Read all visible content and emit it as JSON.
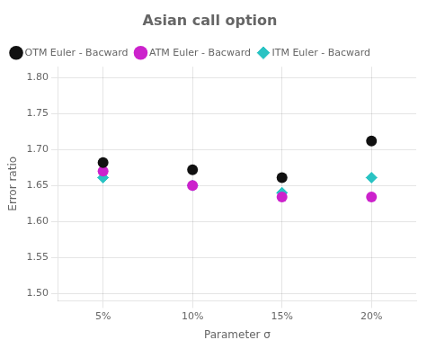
{
  "chart_data": {
    "type": "scatter",
    "title": "Asian call option",
    "x_label": "Parameter σ",
    "y_label": "Error ratio",
    "categories": [
      "5%",
      "10%",
      "15%",
      "20%"
    ],
    "series": [
      {
        "name": "OTM Euler - Bacward",
        "color": "#111111",
        "marker": "circle",
        "values": [
          1.682,
          1.672,
          1.661,
          1.712
        ]
      },
      {
        "name": "ATM Euler - Bacward",
        "color": "#CC22CC",
        "marker": "circle",
        "values": [
          1.67,
          1.65,
          1.634,
          1.634
        ]
      },
      {
        "name": "ITM Euler - Bacward",
        "color": "#29C3C3",
        "marker": "diamond",
        "values": [
          1.661,
          1.65,
          1.64,
          1.661
        ]
      }
    ],
    "ylim": [
      1.49,
      1.815
    ],
    "yticks": [
      {
        "value": 1.5,
        "label": "1.50"
      },
      1.55,
      {
        "value": 1.6,
        "label": "1.60"
      },
      1.65,
      {
        "value": 1.7,
        "label": "1.70"
      },
      1.75,
      {
        "value": 1.8,
        "label": "1.80"
      }
    ],
    "grid": true,
    "legend": "upper left"
  }
}
